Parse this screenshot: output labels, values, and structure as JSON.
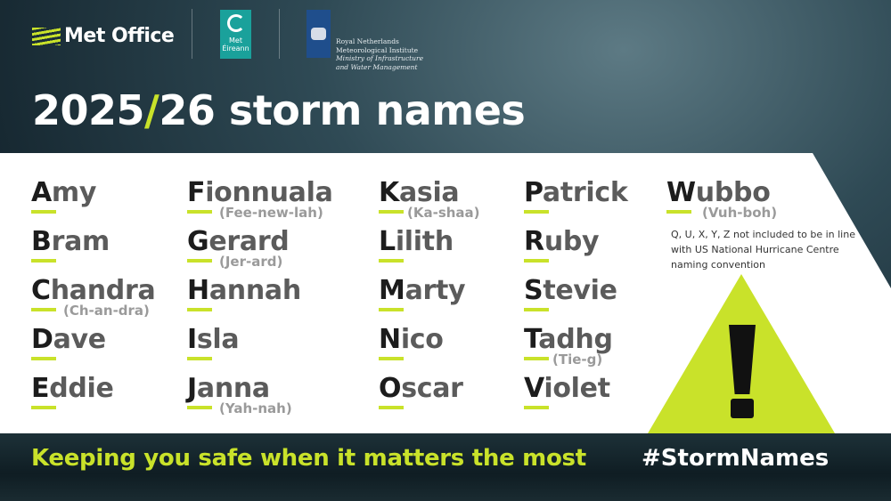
{
  "logos": {
    "met_office": "Met Office",
    "met_eireann": "Met Éireann",
    "knmi": [
      "Royal Netherlands",
      "Meteorological Institute",
      "Ministry of Infrastructure",
      "and Water Management"
    ]
  },
  "title": {
    "year_a": "2025",
    "slash": "/",
    "year_b": "26",
    "text": " storm names"
  },
  "accent_color": "#c9e22a",
  "names": [
    {
      "name": "Amy",
      "pron": ""
    },
    {
      "name": "Bram",
      "pron": ""
    },
    {
      "name": "Chandra",
      "pron": "(Ch-an-dra)"
    },
    {
      "name": "Dave",
      "pron": ""
    },
    {
      "name": "Eddie",
      "pron": ""
    },
    {
      "name": "Fionnuala",
      "pron": "(Fee-new-lah)"
    },
    {
      "name": "Gerard",
      "pron": "(Jer-ard)"
    },
    {
      "name": "Hannah",
      "pron": ""
    },
    {
      "name": "Isla",
      "pron": ""
    },
    {
      "name": "Janna",
      "pron": "(Yah-nah)"
    },
    {
      "name": "Kasia",
      "pron": "(Ka-shaa)"
    },
    {
      "name": "Lilith",
      "pron": ""
    },
    {
      "name": "Marty",
      "pron": ""
    },
    {
      "name": "Nico",
      "pron": ""
    },
    {
      "name": "Oscar",
      "pron": ""
    },
    {
      "name": "Patrick",
      "pron": ""
    },
    {
      "name": "Ruby",
      "pron": ""
    },
    {
      "name": "Stevie",
      "pron": ""
    },
    {
      "name": "Tadhg",
      "pron": "(Tie-g)"
    },
    {
      "name": "Violet",
      "pron": ""
    },
    {
      "name": "Wubbo",
      "pron": "(Vuh-boh)"
    }
  ],
  "note": "Q, U, X, Y, Z not included to be in line with US National Hurricane Centre naming convention",
  "warning_icon": "exclamation-triangle",
  "footer": {
    "tagline": "Keeping you safe when it matters the most",
    "hashtag": "#StormNames"
  }
}
